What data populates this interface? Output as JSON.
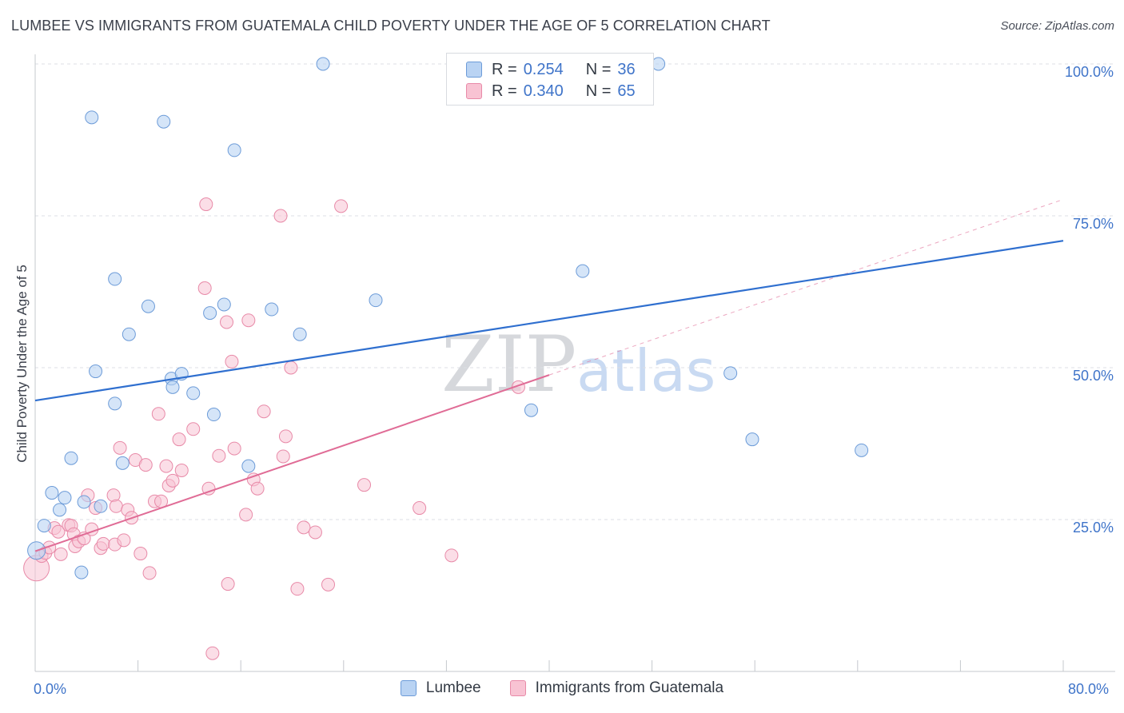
{
  "title": "LUMBEE VS IMMIGRANTS FROM GUATEMALA CHILD POVERTY UNDER THE AGE OF 5 CORRELATION CHART",
  "source": "Source: ZipAtlas.com",
  "watermark": {
    "zip": "ZIP",
    "atlas": "atlas"
  },
  "legend": {
    "r_label": "R =",
    "n_label": "N =",
    "rows": [
      {
        "r": "0.254",
        "n": "36"
      },
      {
        "r": "0.340",
        "n": "65"
      }
    ]
  },
  "x_axis": {
    "min_label": "0.0%",
    "max_label": "80.0%"
  },
  "colors": {
    "lumbee_fill": "#b9d3f3",
    "lumbee_stroke": "#6c9bd8",
    "lumbee_line": "#2f6fcf",
    "guat_fill": "#f8c3d3",
    "guat_stroke": "#e88aa8",
    "guat_line": "#e06c96",
    "tick_text": "#3f74c9",
    "grid": "#dcdfe4"
  },
  "chart_data": {
    "type": "scatter",
    "title": "LUMBEE VS IMMIGRANTS FROM GUATEMALA CHILD POVERTY UNDER THE AGE OF 5 CORRELATION CHART",
    "xlabel": "",
    "ylabel": "Child Poverty Under the Age of 5",
    "xlim": [
      0,
      80
    ],
    "ylim": [
      0,
      100
    ],
    "y_ticks": [
      {
        "value": 25,
        "label": "25.0%"
      },
      {
        "value": 50,
        "label": "50.0%"
      },
      {
        "value": 75,
        "label": "75.0%"
      },
      {
        "value": 100,
        "label": "100.0%"
      }
    ],
    "legend_position": "top-center",
    "series": [
      {
        "name": "Lumbee",
        "r": 0.254,
        "n": 36,
        "trend": {
          "x0": 0,
          "y0": 44.6,
          "x1": 80,
          "y1": 70.9
        },
        "points": [
          [
            0.1,
            19.9
          ],
          [
            0.7,
            24.0
          ],
          [
            1.3,
            29.4
          ],
          [
            1.9,
            26.6
          ],
          [
            2.3,
            28.6
          ],
          [
            2.8,
            35.1
          ],
          [
            3.6,
            16.3
          ],
          [
            3.8,
            27.9
          ],
          [
            4.4,
            91.2
          ],
          [
            4.7,
            49.4
          ],
          [
            5.1,
            27.2
          ],
          [
            6.2,
            64.6
          ],
          [
            6.2,
            44.1
          ],
          [
            6.8,
            34.3
          ],
          [
            7.3,
            55.5
          ],
          [
            8.8,
            60.1
          ],
          [
            10.0,
            90.5
          ],
          [
            10.6,
            48.2
          ],
          [
            10.7,
            46.8
          ],
          [
            11.4,
            49.0
          ],
          [
            12.3,
            45.8
          ],
          [
            13.6,
            59.0
          ],
          [
            13.9,
            42.3
          ],
          [
            14.7,
            60.4
          ],
          [
            15.5,
            85.8
          ],
          [
            16.6,
            33.8
          ],
          [
            18.4,
            59.6
          ],
          [
            20.6,
            55.5
          ],
          [
            22.4,
            100.0
          ],
          [
            26.5,
            61.1
          ],
          [
            38.6,
            43.0
          ],
          [
            42.6,
            65.9
          ],
          [
            48.5,
            100.0
          ],
          [
            54.1,
            49.1
          ],
          [
            55.8,
            38.2
          ],
          [
            64.3,
            36.4
          ]
        ]
      },
      {
        "name": "Immigrants from Guatemala",
        "r": 0.34,
        "n": 65,
        "trend": {
          "x0": 0,
          "y0": 19.8,
          "x1": 40,
          "y1": 48.8
        },
        "trend_extension": {
          "x0": 40,
          "y0": 48.8,
          "x1": 80,
          "y1": 77.7
        },
        "points": [
          [
            0.1,
            17.0
          ],
          [
            0.5,
            19.0
          ],
          [
            0.8,
            19.5
          ],
          [
            1.1,
            20.4
          ],
          [
            1.5,
            23.6
          ],
          [
            1.8,
            23.0
          ],
          [
            2.0,
            19.3
          ],
          [
            2.6,
            24.1
          ],
          [
            2.8,
            24.0
          ],
          [
            3.0,
            22.6
          ],
          [
            3.1,
            20.6
          ],
          [
            3.4,
            21.4
          ],
          [
            3.8,
            21.9
          ],
          [
            4.1,
            29.0
          ],
          [
            4.4,
            23.4
          ],
          [
            4.7,
            26.9
          ],
          [
            5.1,
            20.3
          ],
          [
            5.3,
            21.0
          ],
          [
            6.1,
            29.0
          ],
          [
            6.2,
            20.9
          ],
          [
            6.3,
            27.2
          ],
          [
            6.6,
            36.8
          ],
          [
            6.9,
            21.6
          ],
          [
            7.2,
            26.6
          ],
          [
            7.5,
            25.3
          ],
          [
            7.8,
            34.8
          ],
          [
            8.2,
            19.4
          ],
          [
            8.6,
            34.0
          ],
          [
            8.9,
            16.2
          ],
          [
            9.3,
            28.0
          ],
          [
            9.6,
            42.4
          ],
          [
            9.8,
            28.0
          ],
          [
            10.2,
            33.8
          ],
          [
            10.4,
            30.6
          ],
          [
            10.7,
            31.4
          ],
          [
            11.2,
            38.2
          ],
          [
            11.4,
            33.1
          ],
          [
            12.3,
            39.9
          ],
          [
            13.2,
            63.1
          ],
          [
            13.3,
            76.9
          ],
          [
            13.5,
            30.1
          ],
          [
            13.8,
            3.0
          ],
          [
            14.3,
            35.5
          ],
          [
            14.9,
            57.5
          ],
          [
            15.0,
            14.4
          ],
          [
            15.3,
            51.0
          ],
          [
            15.5,
            36.7
          ],
          [
            16.4,
            25.8
          ],
          [
            16.6,
            57.8
          ],
          [
            17.0,
            31.6
          ],
          [
            17.3,
            30.1
          ],
          [
            17.8,
            42.8
          ],
          [
            19.1,
            75.0
          ],
          [
            19.3,
            35.4
          ],
          [
            19.5,
            38.7
          ],
          [
            19.9,
            50.0
          ],
          [
            20.4,
            13.6
          ],
          [
            20.9,
            23.7
          ],
          [
            21.8,
            22.9
          ],
          [
            22.8,
            14.3
          ],
          [
            23.8,
            76.6
          ],
          [
            25.6,
            30.7
          ],
          [
            29.9,
            26.9
          ],
          [
            32.4,
            19.1
          ],
          [
            37.6,
            46.8
          ]
        ]
      }
    ]
  }
}
